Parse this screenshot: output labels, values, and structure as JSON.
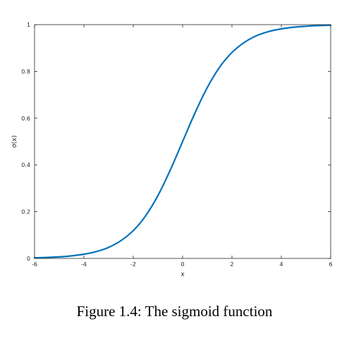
{
  "chart_data": {
    "type": "line",
    "title": "",
    "xlabel": "x",
    "ylabel": "σ(x)",
    "xlim": [
      -6,
      6
    ],
    "ylim": [
      0,
      1
    ],
    "xticks": [
      -6,
      -4,
      -2,
      0,
      2,
      4,
      6
    ],
    "xtick_labels": [
      "-6",
      "-4",
      "-2",
      "0",
      "2",
      "4",
      "6"
    ],
    "yticks": [
      0,
      0.2,
      0.4,
      0.6,
      0.8,
      1
    ],
    "ytick_labels": [
      "0",
      "0.2",
      "0.4",
      "0.6",
      "0.8",
      "1"
    ],
    "grid": false,
    "series": [
      {
        "color": "#0072bd",
        "x": [
          -6,
          -5.5,
          -5,
          -4.5,
          -4,
          -3.5,
          -3,
          -2.5,
          -2,
          -1.5,
          -1,
          -0.5,
          0,
          0.5,
          1,
          1.5,
          2,
          2.5,
          3,
          3.5,
          4,
          4.5,
          5,
          5.5,
          6
        ],
        "y": [
          0.0025,
          0.0041,
          0.0067,
          0.011,
          0.018,
          0.029,
          0.047,
          0.076,
          0.119,
          0.182,
          0.269,
          0.378,
          0.5,
          0.622,
          0.731,
          0.818,
          0.881,
          0.924,
          0.953,
          0.971,
          0.982,
          0.989,
          0.993,
          0.996,
          0.9975
        ]
      }
    ]
  },
  "caption": "Figure 1.4: The sigmoid function"
}
